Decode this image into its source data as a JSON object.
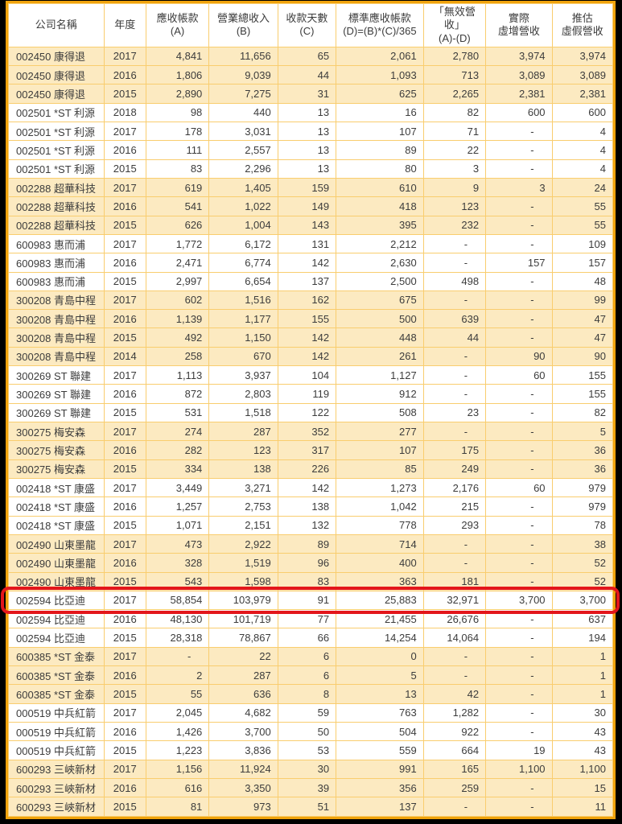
{
  "chart_data": {
    "type": "table",
    "columns": [
      "公司名稱",
      "年度",
      "應收帳款\n(A)",
      "營業總收入\n(B)",
      "收款天數\n(C)",
      "標準應收帳款\n(D)=(B)*(C)/365",
      "「無效營收」\n(A)-(D)",
      "實際\n虛增營收",
      "推估\n虛假營收"
    ],
    "empty_marker": "-",
    "highlight_row_index": 29,
    "rows": [
      [
        "002450 康得退",
        "2017",
        "4,841",
        "11,656",
        "65",
        "2,061",
        "2,780",
        "3,974",
        "3,974"
      ],
      [
        "002450 康得退",
        "2016",
        "1,806",
        "9,039",
        "44",
        "1,093",
        "713",
        "3,089",
        "3,089"
      ],
      [
        "002450 康得退",
        "2015",
        "2,890",
        "7,275",
        "31",
        "625",
        "2,265",
        "2,381",
        "2,381"
      ],
      [
        "002501 *ST 利源",
        "2018",
        "98",
        "440",
        "13",
        "16",
        "82",
        "600",
        "600"
      ],
      [
        "002501 *ST 利源",
        "2017",
        "178",
        "3,031",
        "13",
        "107",
        "71",
        "-",
        "4"
      ],
      [
        "002501 *ST 利源",
        "2016",
        "111",
        "2,557",
        "13",
        "89",
        "22",
        "-",
        "4"
      ],
      [
        "002501 *ST 利源",
        "2015",
        "83",
        "2,296",
        "13",
        "80",
        "3",
        "-",
        "4"
      ],
      [
        "002288 超華科技",
        "2017",
        "619",
        "1,405",
        "159",
        "610",
        "9",
        "3",
        "24"
      ],
      [
        "002288 超華科技",
        "2016",
        "541",
        "1,022",
        "149",
        "418",
        "123",
        "-",
        "55"
      ],
      [
        "002288 超華科技",
        "2015",
        "626",
        "1,004",
        "143",
        "395",
        "232",
        "-",
        "55"
      ],
      [
        "600983 惠而浦",
        "2017",
        "1,772",
        "6,172",
        "131",
        "2,212",
        "-",
        "-",
        "109"
      ],
      [
        "600983 惠而浦",
        "2016",
        "2,471",
        "6,774",
        "142",
        "2,630",
        "-",
        "157",
        "157"
      ],
      [
        "600983 惠而浦",
        "2015",
        "2,997",
        "6,654",
        "137",
        "2,500",
        "498",
        "-",
        "48"
      ],
      [
        "300208 青島中程",
        "2017",
        "602",
        "1,516",
        "162",
        "675",
        "-",
        "-",
        "99"
      ],
      [
        "300208 青島中程",
        "2016",
        "1,139",
        "1,177",
        "155",
        "500",
        "639",
        "-",
        "47"
      ],
      [
        "300208 青島中程",
        "2015",
        "492",
        "1,150",
        "142",
        "448",
        "44",
        "-",
        "47"
      ],
      [
        "300208 青島中程",
        "2014",
        "258",
        "670",
        "142",
        "261",
        "-",
        "90",
        "90"
      ],
      [
        "300269 ST 聯建",
        "2017",
        "1,113",
        "3,937",
        "104",
        "1,127",
        "-",
        "60",
        "155"
      ],
      [
        "300269 ST 聯建",
        "2016",
        "872",
        "2,803",
        "119",
        "912",
        "-",
        "-",
        "155"
      ],
      [
        "300269 ST 聯建",
        "2015",
        "531",
        "1,518",
        "122",
        "508",
        "23",
        "-",
        "82"
      ],
      [
        "300275 梅安森",
        "2017",
        "274",
        "287",
        "352",
        "277",
        "-",
        "-",
        "5"
      ],
      [
        "300275 梅安森",
        "2016",
        "282",
        "123",
        "317",
        "107",
        "175",
        "-",
        "36"
      ],
      [
        "300275 梅安森",
        "2015",
        "334",
        "138",
        "226",
        "85",
        "249",
        "-",
        "36"
      ],
      [
        "002418 *ST 康盛",
        "2017",
        "3,449",
        "3,271",
        "142",
        "1,273",
        "2,176",
        "60",
        "979"
      ],
      [
        "002418 *ST 康盛",
        "2016",
        "1,257",
        "2,753",
        "138",
        "1,042",
        "215",
        "-",
        "979"
      ],
      [
        "002418 *ST 康盛",
        "2015",
        "1,071",
        "2,151",
        "132",
        "778",
        "293",
        "-",
        "78"
      ],
      [
        "002490 山東墨龍",
        "2017",
        "473",
        "2,922",
        "89",
        "714",
        "-",
        "-",
        "38"
      ],
      [
        "002490 山東墨龍",
        "2016",
        "328",
        "1,519",
        "96",
        "400",
        "-",
        "-",
        "52"
      ],
      [
        "002490 山東墨龍",
        "2015",
        "543",
        "1,598",
        "83",
        "363",
        "181",
        "-",
        "52"
      ],
      [
        "002594 比亞迪",
        "2017",
        "58,854",
        "103,979",
        "91",
        "25,883",
        "32,971",
        "3,700",
        "3,700"
      ],
      [
        "002594 比亞迪",
        "2016",
        "48,130",
        "101,719",
        "77",
        "21,455",
        "26,676",
        "-",
        "637"
      ],
      [
        "002594 比亞迪",
        "2015",
        "28,318",
        "78,867",
        "66",
        "14,254",
        "14,064",
        "-",
        "194"
      ],
      [
        "600385 *ST 金泰",
        "2017",
        "-",
        "22",
        "6",
        "0",
        "-",
        "-",
        "1"
      ],
      [
        "600385 *ST 金泰",
        "2016",
        "2",
        "287",
        "6",
        "5",
        "-",
        "-",
        "1"
      ],
      [
        "600385 *ST 金泰",
        "2015",
        "55",
        "636",
        "8",
        "13",
        "42",
        "-",
        "1"
      ],
      [
        "000519 中兵紅箭",
        "2017",
        "2,045",
        "4,682",
        "59",
        "763",
        "1,282",
        "-",
        "30"
      ],
      [
        "000519 中兵紅箭",
        "2016",
        "1,426",
        "3,700",
        "50",
        "504",
        "922",
        "-",
        "43"
      ],
      [
        "000519 中兵紅箭",
        "2015",
        "1,223",
        "3,836",
        "53",
        "559",
        "664",
        "19",
        "43"
      ],
      [
        "600293 三峽新材",
        "2017",
        "1,156",
        "11,924",
        "30",
        "991",
        "165",
        "1,100",
        "1,100"
      ],
      [
        "600293 三峽新材",
        "2016",
        "616",
        "3,350",
        "39",
        "356",
        "259",
        "-",
        "15"
      ],
      [
        "600293 三峽新材",
        "2015",
        "81",
        "973",
        "51",
        "137",
        "-",
        "-",
        "11"
      ]
    ]
  },
  "colors": {
    "frame_border": "#F0A30C",
    "grid_line": "#F9CD6E",
    "band_fill": "#FCEAC1",
    "white_fill": "#FFFFFF",
    "text": "#3C3C3C",
    "highlight_border": "#E3161B",
    "page_background": "#000000"
  }
}
